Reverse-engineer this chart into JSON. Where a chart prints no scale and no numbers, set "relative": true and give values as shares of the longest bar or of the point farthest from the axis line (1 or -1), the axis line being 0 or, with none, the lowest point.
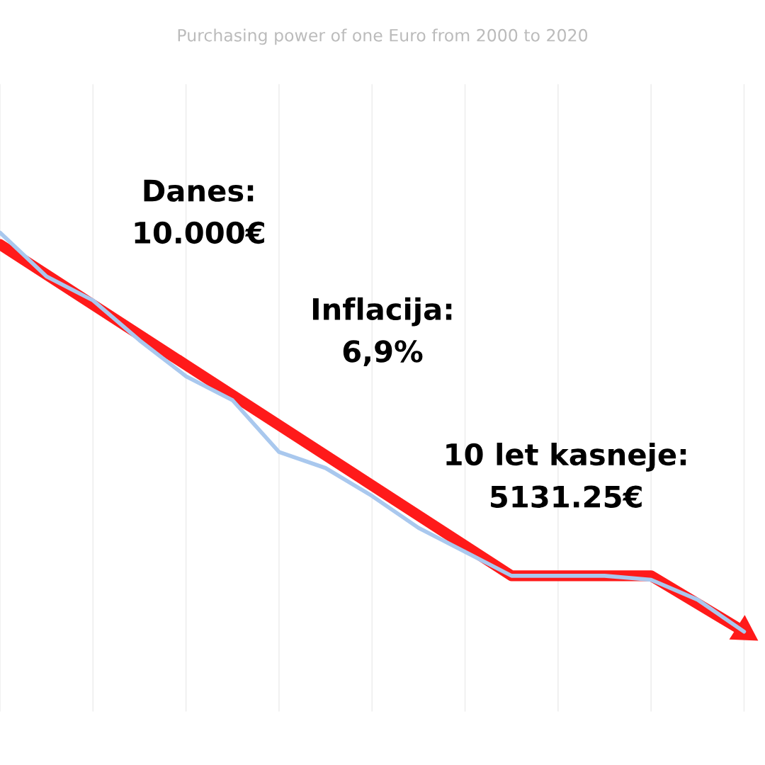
{
  "chart_data": {
    "type": "line",
    "title": "Purchasing power of one Euro from 2000 to 2020",
    "categories": [
      null,
      null,
      null,
      null,
      null,
      null,
      null,
      null,
      null,
      null,
      null,
      null,
      null,
      null,
      null,
      null,
      null
    ],
    "relative": true,
    "grid": true,
    "tick_labels": false,
    "marker": "none",
    "line_style": "solid",
    "series": [
      {
        "color": "#a9c8ee",
        "values": [
          1,
          0.89,
          0.83,
          0.73,
          0.64,
          0.58,
          0.45,
          0.41,
          0.34,
          0.26,
          0.2,
          0.14,
          0.14,
          0.14,
          0.13,
          0.08,
          0
        ]
      },
      {
        "type": "line",
        "color": "#ff1a1a",
        "values": [
          0.97,
          null,
          null,
          null,
          null,
          null,
          null,
          null,
          null,
          null,
          null,
          0.14,
          null,
          null,
          0.14,
          null,
          0
        ]
      }
    ],
    "annotations": [
      "Danes:\n10.000€",
      "Inflacija:\n6,9%",
      "10 let kasneje:\n5131.25€"
    ]
  }
}
